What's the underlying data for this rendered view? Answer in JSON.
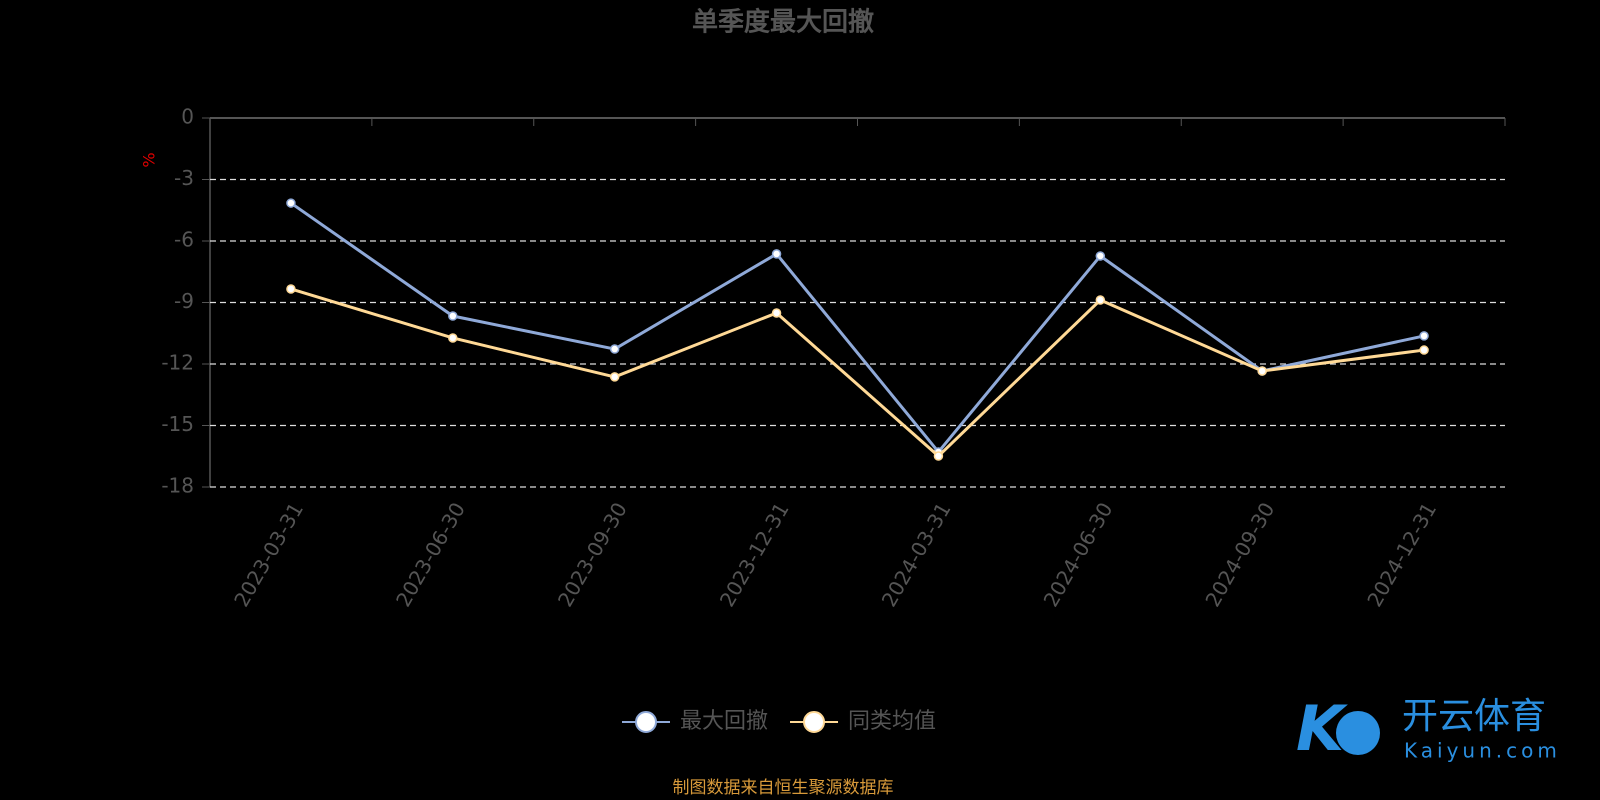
{
  "chart_data": {
    "type": "line",
    "title": "单季度最大回撤",
    "y_label": "%",
    "categories": [
      "2023-03-31",
      "2023-06-30",
      "2023-09-30",
      "2023-12-31",
      "2024-03-31",
      "2024-06-30",
      "2024-09-30",
      "2024-12-31"
    ],
    "series": [
      {
        "name": "最大回撤",
        "color": "#8fa9d8",
        "values": [
          -4.15,
          -9.66,
          -11.27,
          -6.63,
          -16.29,
          -6.73,
          -12.34,
          -10.63
        ]
      },
      {
        "name": "同类均值",
        "color": "#ffd996",
        "values": [
          -8.34,
          -10.73,
          -12.63,
          -9.51,
          -16.49,
          -8.88,
          -12.34,
          -11.32
        ]
      }
    ],
    "ylim": [
      -18,
      0
    ],
    "yticks": [
      0,
      -3,
      -6,
      -9,
      -12,
      -15,
      -18
    ],
    "grid": true,
    "source": "制图数据来自恒生聚源数据库",
    "watermark": {
      "brand": "开云体育",
      "site": "Kaiyun.com"
    }
  }
}
